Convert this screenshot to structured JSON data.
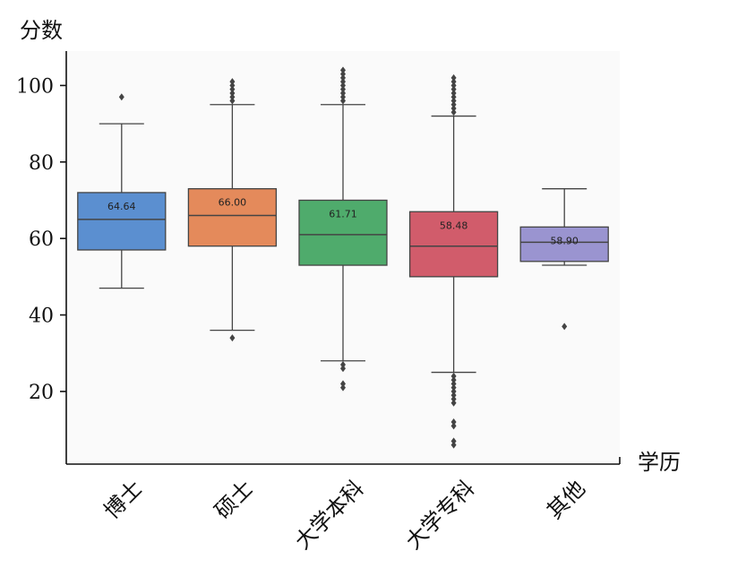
{
  "chart_data": {
    "type": "box",
    "ylabel": "分数",
    "xlabel": "学历",
    "ylim": [
      1,
      109
    ],
    "yticks": [
      20,
      40,
      60,
      80,
      100
    ],
    "grid": false,
    "categories": [
      "博士",
      "硕士",
      "大学本科",
      "大学专科",
      "其他"
    ],
    "colors": [
      "#5b8fd0",
      "#e48a5b",
      "#4fab6c",
      "#d15c6b",
      "#9a94d0"
    ],
    "boxes": [
      {
        "category": "博士",
        "whisker_low": 47,
        "q1": 57,
        "median": 65,
        "q3": 72,
        "whisker_high": 90,
        "mean_label": "64.64",
        "outliers": [
          97
        ]
      },
      {
        "category": "硕士",
        "whisker_low": 36,
        "q1": 58,
        "median": 66,
        "q3": 73,
        "whisker_high": 95,
        "mean_label": "66.00",
        "outliers": [
          34,
          96,
          97,
          98,
          99,
          100,
          101
        ]
      },
      {
        "category": "大学本科",
        "whisker_low": 28,
        "q1": 53,
        "median": 61,
        "q3": 70,
        "whisker_high": 95,
        "mean_label": "61.71",
        "outliers": [
          21,
          22,
          26,
          27,
          96,
          97,
          98,
          99,
          100,
          101,
          102,
          103,
          104
        ]
      },
      {
        "category": "大学专科",
        "whisker_low": 25,
        "q1": 50,
        "median": 58,
        "q3": 67,
        "whisker_high": 92,
        "mean_label": "58.48",
        "outliers": [
          6,
          7,
          11,
          12,
          17,
          18,
          19,
          20,
          21,
          22,
          23,
          24,
          93,
          94,
          95,
          96,
          97,
          98,
          99,
          100,
          101,
          102
        ]
      },
      {
        "category": "其他",
        "whisker_low": 53,
        "q1": 54,
        "median": 59,
        "q3": 63,
        "whisker_high": 73,
        "mean_label": "58.90",
        "outliers": [
          37
        ]
      }
    ]
  }
}
